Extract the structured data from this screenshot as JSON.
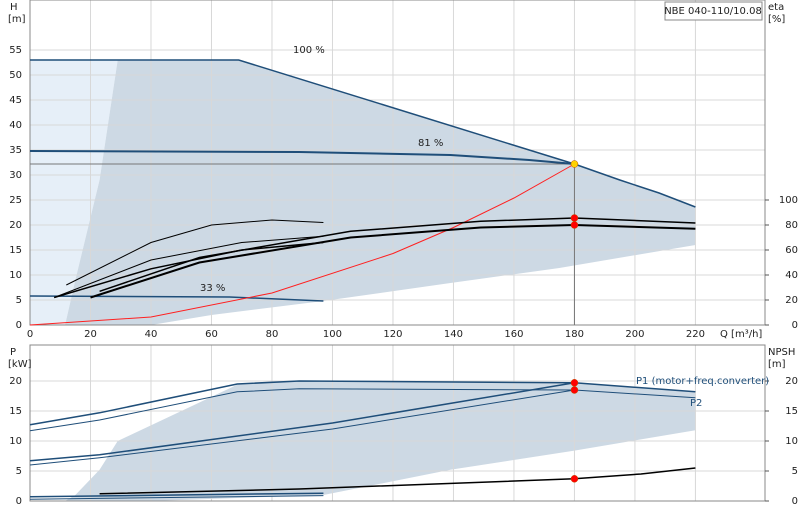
{
  "chart_data": [
    {
      "type": "line",
      "y_label": "H",
      "y_unit": "[m]",
      "y2_label": "eta",
      "y2_unit": "[%]",
      "x_label": "Q [m³/h]",
      "model": "NBE 040-110/10.08",
      "xlim": [
        0,
        243
      ],
      "xticks": [
        0,
        20,
        40,
        60,
        80,
        100,
        120,
        140,
        160,
        180,
        200,
        220
      ],
      "ylim": [
        0,
        65
      ],
      "yticks": [
        0,
        5,
        10,
        15,
        20,
        25,
        30,
        35,
        40,
        45,
        50,
        55
      ],
      "y2lim": [
        0,
        260
      ],
      "y2ticks": [
        0,
        20,
        40,
        60,
        80,
        100
      ],
      "grid": true,
      "areas": [
        {
          "color": "#e6eff8",
          "x": [
            0,
            0,
            29,
            23,
            15,
            11.6
          ],
          "values": [
            0,
            53,
            53,
            29,
            9,
            0
          ]
        },
        {
          "color": "#cdd9e4",
          "x": [
            11.6,
            15,
            23,
            29,
            69,
            180,
            195,
            208,
            220,
            220,
            175,
            139,
            97,
            60,
            40
          ],
          "values": [
            0,
            9,
            29,
            53,
            53,
            32.2,
            29,
            26.4,
            23.6,
            16,
            11.4,
            8.4,
            4.8,
            2,
            0
          ]
        }
      ],
      "series": [
        {
          "name": "100 %",
          "color": "#1f4e79",
          "width": 1.5,
          "x": [
            0,
            69,
            180,
            195,
            208,
            220
          ],
          "values": [
            53,
            53,
            32.2,
            29,
            26.4,
            23.6
          ]
        },
        {
          "name": "81 %",
          "color": "#1f4e79",
          "width": 2,
          "x": [
            0,
            89,
            139,
            165,
            180
          ],
          "values": [
            34.8,
            34.6,
            34,
            33,
            32.2
          ]
        },
        {
          "name": "33 %",
          "color": "#1f4e79",
          "width": 1.5,
          "x": [
            0,
            66,
            97
          ],
          "values": [
            5.8,
            5.6,
            4.8
          ]
        },
        {
          "color": "#ff2020",
          "width": 1,
          "x": [
            0,
            40,
            80,
            120,
            140,
            160,
            180
          ],
          "values": [
            0,
            1.6,
            6.4,
            14.3,
            19.5,
            25.4,
            32.2
          ]
        },
        {
          "color": "#000000",
          "width": 2,
          "axis": "y2",
          "x": [
            20,
            56,
            106,
            149,
            180,
            220
          ],
          "values": [
            22,
            50,
            70,
            78,
            80,
            77
          ]
        },
        {
          "color": "#000000",
          "width": 1.5,
          "axis": "y2",
          "x": [
            23,
            56,
            106,
            149,
            180,
            220
          ],
          "values": [
            27,
            54,
            75,
            83,
            85.6,
            81.6
          ]
        },
        {
          "color": "#000000",
          "width": 1,
          "axis": "y2",
          "x": [
            8,
            40,
            70,
            97
          ],
          "values": [
            22,
            52,
            66,
            71
          ]
        },
        {
          "color": "#000000",
          "width": 1,
          "axis": "y2",
          "x": [
            12,
            40,
            60,
            80,
            97
          ],
          "values": [
            32,
            66,
            80,
            84,
            82
          ]
        },
        {
          "color": "#000000",
          "width": 1.5,
          "axis": "y2",
          "x": [
            8,
            40,
            70,
            97
          ],
          "values": [
            22,
            45,
            60,
            66
          ]
        }
      ],
      "markers": {
        "x": [
          180,
          180,
          180
        ],
        "values": [
          32.2,
          80,
          85.6
        ],
        "axis": [
          "y",
          "y2",
          "y2"
        ],
        "colors": [
          "#ffd200",
          "#ff0000",
          "#ff0000"
        ]
      }
    },
    {
      "type": "line",
      "y_label": "P",
      "y_unit": "[kW]",
      "y2_label": "NPSH",
      "y2_unit": "[m]",
      "xlim": [
        0,
        243
      ],
      "xticks": [
        0,
        20,
        40,
        60,
        80,
        100,
        120,
        140,
        160,
        180,
        200,
        220
      ],
      "ylim": [
        0,
        26
      ],
      "yticks": [
        0,
        5,
        10,
        15,
        20
      ],
      "y2lim": [
        0,
        26
      ],
      "y2ticks": [
        0,
        5,
        10,
        15,
        20
      ],
      "grid": true,
      "areas": [
        {
          "color": "#cdd9e4",
          "x": [
            11.6,
            15,
            23,
            29,
            69,
            89,
            180,
            220,
            220,
            180,
            139,
            97,
            40
          ],
          "values": [
            0,
            1,
            5.2,
            10,
            19.5,
            20,
            19.7,
            18.2,
            11.8,
            8.4,
            5.2,
            1,
            0
          ]
        }
      ],
      "series": [
        {
          "name": "P1 (motor+freq.converter)",
          "color": "#1f4e79",
          "width": 1.5,
          "x": [
            0,
            23,
            68.5,
            89,
            180,
            220
          ],
          "values": [
            12.7,
            14.7,
            19.5,
            20,
            19.7,
            18.2
          ]
        },
        {
          "name": "P2",
          "color": "#1f4e79",
          "width": 1,
          "x": [
            0,
            23,
            68.5,
            89,
            180,
            220
          ],
          "values": [
            11.7,
            13.5,
            18.2,
            18.7,
            18.5,
            17.2
          ]
        },
        {
          "color": "#1f4e79",
          "width": 1.5,
          "x": [
            0,
            23,
            100,
            180
          ],
          "values": [
            6.7,
            7.7,
            13,
            19.7
          ]
        },
        {
          "color": "#1f4e79",
          "width": 1,
          "x": [
            0,
            23,
            100,
            180
          ],
          "values": [
            6,
            7.2,
            12,
            18.5
          ]
        },
        {
          "color": "#1f4e79",
          "width": 1.5,
          "x": [
            0,
            97
          ],
          "values": [
            0.7,
            1.3
          ]
        },
        {
          "color": "#1f4e79",
          "width": 1,
          "x": [
            0,
            97
          ],
          "values": [
            0.3,
            0.9
          ]
        },
        {
          "color": "#000000",
          "width": 1.5,
          "axis": "y2",
          "x": [
            23,
            89,
            180,
            202,
            220
          ],
          "values": [
            1.2,
            2,
            3.7,
            4.5,
            5.5
          ]
        }
      ],
      "markers": {
        "x": [
          180,
          180,
          180
        ],
        "values": [
          19.7,
          18.5,
          3.7
        ],
        "axis": [
          "y",
          "y",
          "y2"
        ],
        "colors": [
          "#ff0000",
          "#ff0000",
          "#ff0000"
        ]
      }
    }
  ]
}
